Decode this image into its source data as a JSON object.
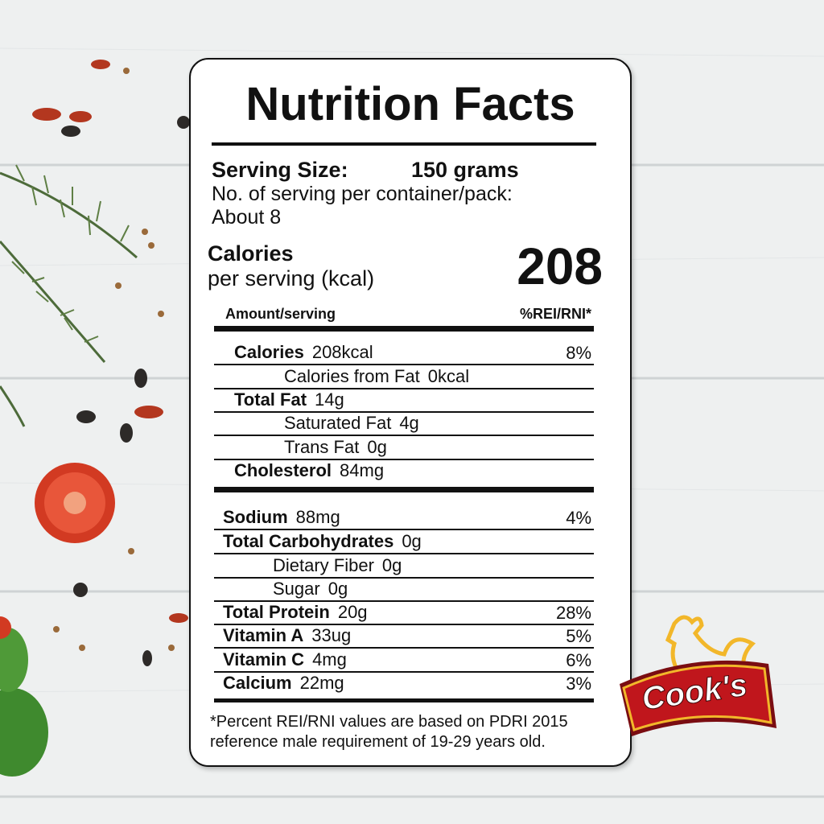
{
  "title": "Nutrition Facts",
  "serving": {
    "label": "Serving Size:",
    "value": "150 grams",
    "per_container_label": "No. of serving per container/pack:",
    "per_container_value": "About 8"
  },
  "calories": {
    "label": "Calories",
    "sublabel": "per serving (kcal)",
    "value": "208"
  },
  "header": {
    "amount": "Amount/serving",
    "percent": "%REI/RNI*"
  },
  "rows": [
    {
      "name": "Calories",
      "amount": "208kcal",
      "percent": "8%"
    },
    {
      "name": "Calories from Fat",
      "amount": "0kcal"
    },
    {
      "name": "Total Fat",
      "amount": "14g"
    },
    {
      "name": "Saturated Fat",
      "amount": "4g"
    },
    {
      "name": "Trans Fat",
      "amount": "0g"
    },
    {
      "name": "Cholesterol",
      "amount": "84mg"
    },
    {
      "name": "Sodium",
      "amount": "88mg",
      "percent": "4%"
    },
    {
      "name": "Total Carbohydrates",
      "amount": "0g"
    },
    {
      "name": "Dietary Fiber",
      "amount": "0g"
    },
    {
      "name": "Sugar",
      "amount": "0g"
    },
    {
      "name": "Total Protein",
      "amount": "20g",
      "percent": "28%"
    },
    {
      "name": "Vitamin A",
      "amount": "33ug",
      "percent": "5%"
    },
    {
      "name": "Vitamin C",
      "amount": "4mg",
      "percent": "6%"
    },
    {
      "name": "Calcium",
      "amount": "22mg",
      "percent": "3%"
    }
  ],
  "footnote": [
    "*Percent REI/RNI values are based on PDRI 2015",
    "reference male requirement of 19-29 years old."
  ],
  "brand": "Cook's"
}
